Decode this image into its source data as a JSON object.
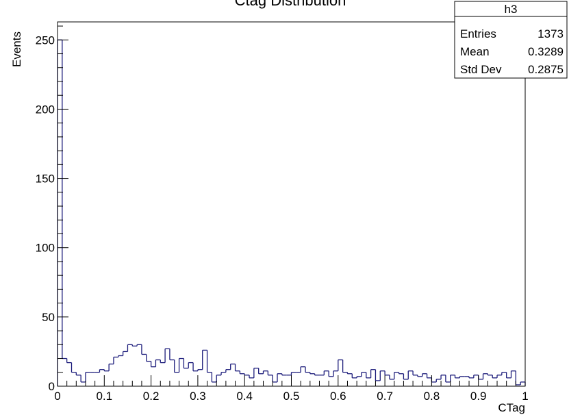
{
  "chart_data": {
    "type": "histogram",
    "title": "Ctag Distribution",
    "xlabel": "CTag",
    "ylabel": "Events",
    "xlim": [
      0,
      1
    ],
    "ylim": [
      0,
      263
    ],
    "bin_width": 0.01,
    "x_ticks": [
      0,
      0.1,
      0.2,
      0.3,
      0.4,
      0.5,
      0.6,
      0.7,
      0.8,
      0.9,
      1
    ],
    "x_tick_labels": [
      "0",
      "0.1",
      "0.2",
      "0.3",
      "0.4",
      "0.5",
      "0.6",
      "0.7",
      "0.8",
      "0.9",
      "1"
    ],
    "y_ticks": [
      0,
      50,
      100,
      150,
      200,
      250
    ],
    "y_tick_labels": [
      "0",
      "50",
      "100",
      "150",
      "200",
      "250"
    ],
    "line_color": "#1a1a7a",
    "series": [
      {
        "values": [
          250,
          20,
          17,
          10,
          8,
          3,
          10,
          10,
          10,
          12,
          11,
          16,
          21,
          22,
          25,
          30,
          29,
          30,
          23,
          18,
          14,
          19,
          17,
          27,
          19,
          10,
          20,
          13,
          17,
          11,
          12,
          26,
          10,
          3,
          8,
          10,
          12,
          16,
          11,
          9,
          8,
          6,
          13,
          9,
          11,
          8,
          3,
          9,
          8,
          8,
          10,
          10,
          14,
          10,
          9,
          8,
          8,
          11,
          7,
          11,
          19,
          10,
          9,
          6,
          7,
          10,
          6,
          12,
          4,
          11,
          8,
          5,
          10,
          9,
          5,
          11,
          8,
          7,
          9,
          6,
          3,
          5,
          8,
          3,
          8,
          6,
          7,
          7,
          6,
          8,
          5,
          9,
          8,
          6,
          8,
          10,
          6,
          11,
          1,
          3
        ]
      }
    ],
    "stats_box": {
      "name": "h3",
      "rows": [
        {
          "label": "Entries",
          "value": "1373"
        },
        {
          "label": "Mean",
          "value": "0.3289"
        },
        {
          "label": "Std Dev",
          "value": "0.2875"
        }
      ]
    }
  }
}
